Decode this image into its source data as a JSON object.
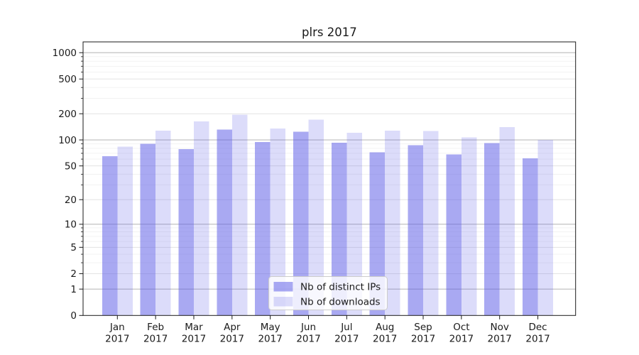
{
  "title": "plrs 2017",
  "chart_data": {
    "type": "bar",
    "title": "plrs 2017",
    "categories": [
      "Jan 2017",
      "Feb 2017",
      "Mar 2017",
      "Apr 2017",
      "May 2017",
      "Jun 2017",
      "Jul 2017",
      "Aug 2017",
      "Sep 2017",
      "Oct 2017",
      "Nov 2017",
      "Dec 2017"
    ],
    "series": [
      {
        "name": "Nb of distinct IPs",
        "color": "rgba(90,90,230,0.52)",
        "values": [
          65,
          90,
          78,
          132,
          95,
          124,
          93,
          72,
          87,
          68,
          92,
          61
        ]
      },
      {
        "name": "Nb of downloads",
        "color": "rgba(90,90,230,0.21)",
        "values": [
          84,
          128,
          163,
          196,
          135,
          171,
          121,
          128,
          127,
          107,
          140,
          100
        ]
      }
    ],
    "xlabel": "",
    "ylabel": "",
    "yscale": "symlog",
    "yticks": [
      0,
      1,
      2,
      5,
      10,
      20,
      50,
      100,
      200,
      500,
      1000
    ],
    "ylim": [
      0,
      1330
    ],
    "grid": "on",
    "legend_position": "lower center"
  },
  "colors": {
    "bar_accent": "#5a5ae6",
    "background": "#ffffff"
  }
}
